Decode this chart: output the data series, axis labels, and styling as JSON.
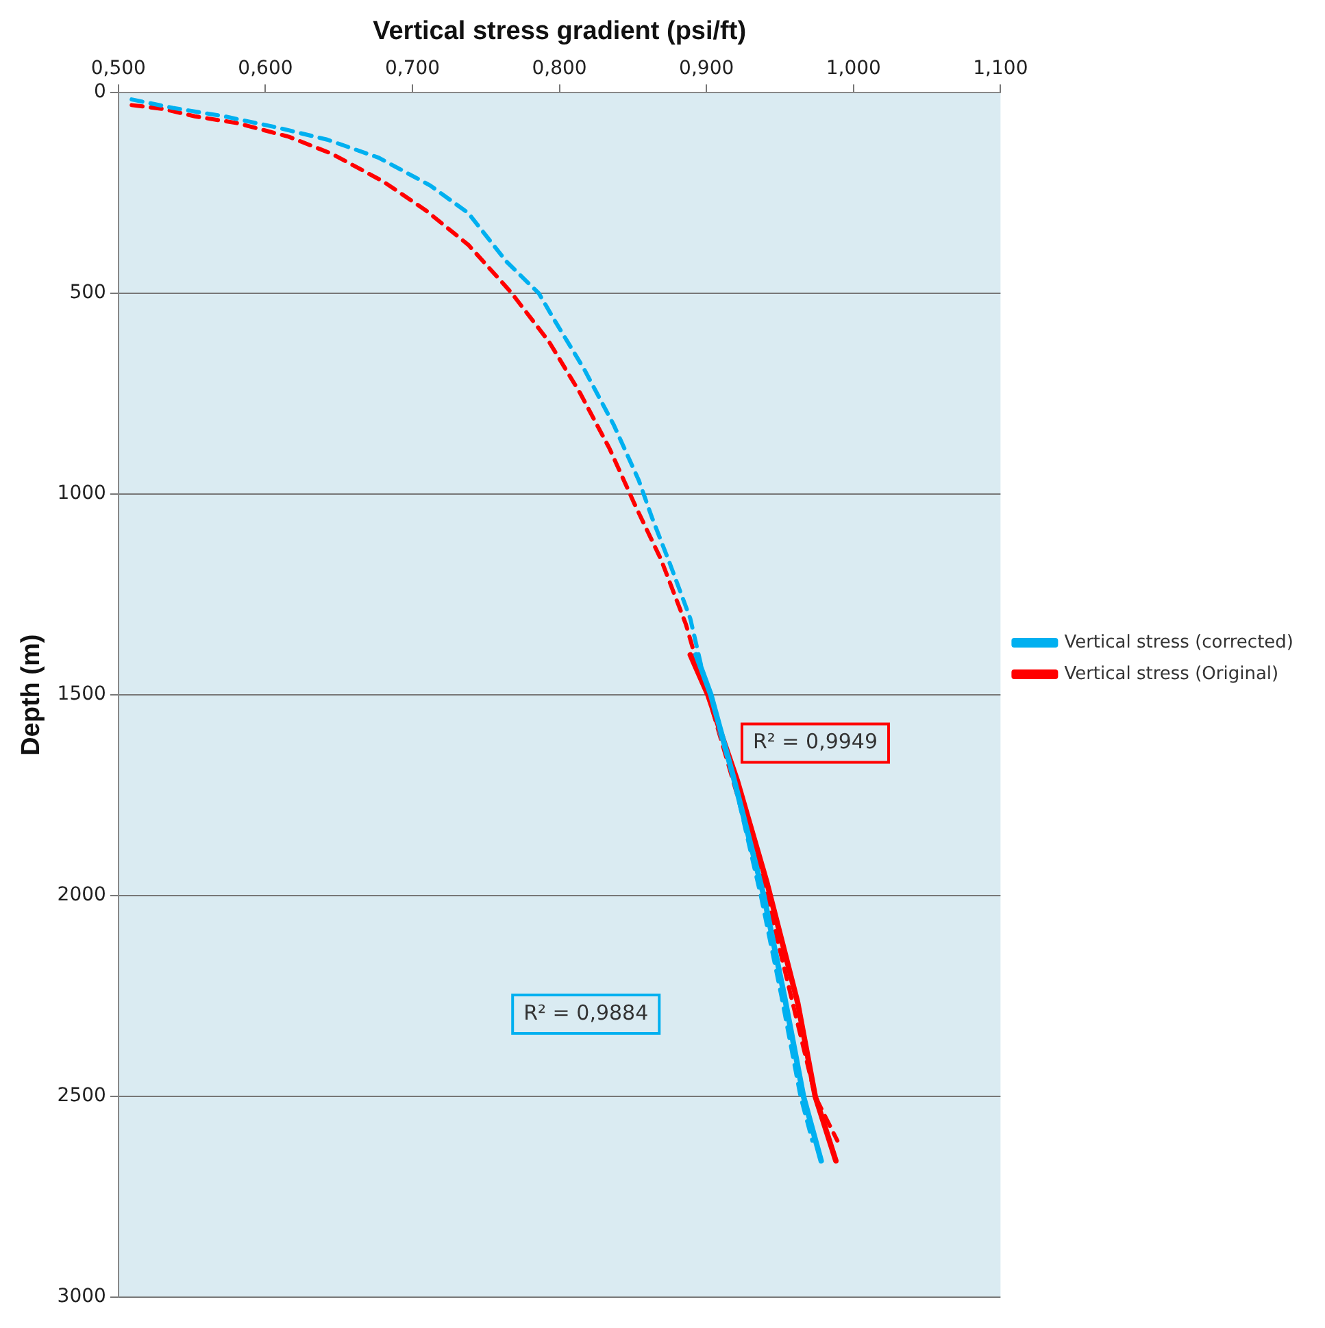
{
  "chart_data": {
    "type": "line",
    "xlabel": "Vertical stress gradient (psi/ft)",
    "ylabel": "Depth (m)",
    "xlim": [
      0.5,
      1.1
    ],
    "xticks": [
      {
        "value": 0.5,
        "label": "0,500"
      },
      {
        "value": 0.6,
        "label": "0,600"
      },
      {
        "value": 0.7,
        "label": "0,700"
      },
      {
        "value": 0.8,
        "label": "0,800"
      },
      {
        "value": 0.9,
        "label": "0,900"
      },
      {
        "value": 1.0,
        "label": "1,000"
      },
      {
        "value": 1.1,
        "label": "1,100"
      }
    ],
    "ylim": [
      3000,
      0
    ],
    "yticks": [
      0,
      500,
      1000,
      1500,
      2000,
      2500,
      3000
    ],
    "grid": "y",
    "legend": "right",
    "marker": "none",
    "series": [
      {
        "name": "Vertical stress (corrected)",
        "color": "#00b0f0",
        "line_style": "solid",
        "x": [
          0.893,
          0.903,
          0.918,
          0.939,
          0.953,
          0.966,
          0.978
        ],
        "values": [
          1400,
          1500,
          1700,
          2000,
          2250,
          2500,
          2660
        ]
      },
      {
        "name": "Vertical stress (Original)",
        "color": "#ff0000",
        "line_style": "solid",
        "x": [
          0.889,
          0.901,
          0.921,
          0.941,
          0.962,
          0.974,
          0.988
        ],
        "values": [
          1400,
          1500,
          1714,
          1966,
          2266,
          2500,
          2660
        ]
      },
      {
        "color": "#00b0f0",
        "line_style": "dashed",
        "x": [
          0.509,
          0.537,
          0.572,
          0.607,
          0.642,
          0.677,
          0.712,
          0.738,
          0.764,
          0.786,
          0.797,
          0.817,
          0.837,
          0.854,
          0.863,
          0.875,
          0.889,
          0.901,
          0.918,
          0.937,
          0.951,
          0.964,
          0.972
        ],
        "values": [
          17,
          38,
          59,
          86,
          117,
          162,
          231,
          300,
          421,
          500,
          569,
          690,
          828,
          966,
          1059,
          1172,
          1310,
          1500,
          1700,
          2000,
          2250,
          2500,
          2610
        ]
      },
      {
        "color": "#ff0000",
        "line_style": "dashed",
        "x": [
          0.509,
          0.531,
          0.552,
          0.581,
          0.616,
          0.645,
          0.68,
          0.709,
          0.738,
          0.767,
          0.793,
          0.814,
          0.834,
          0.851,
          0.869,
          0.886,
          0.895,
          0.901,
          0.941,
          0.974,
          0.989
        ],
        "values": [
          31,
          41,
          59,
          76,
          110,
          152,
          221,
          293,
          379,
          497,
          621,
          748,
          886,
          1024,
          1162,
          1324,
          1438,
          1500,
          2000,
          2500,
          2610
        ]
      }
    ],
    "annotations": [
      "R² = 0,9949",
      "R² = 0,9884"
    ]
  }
}
